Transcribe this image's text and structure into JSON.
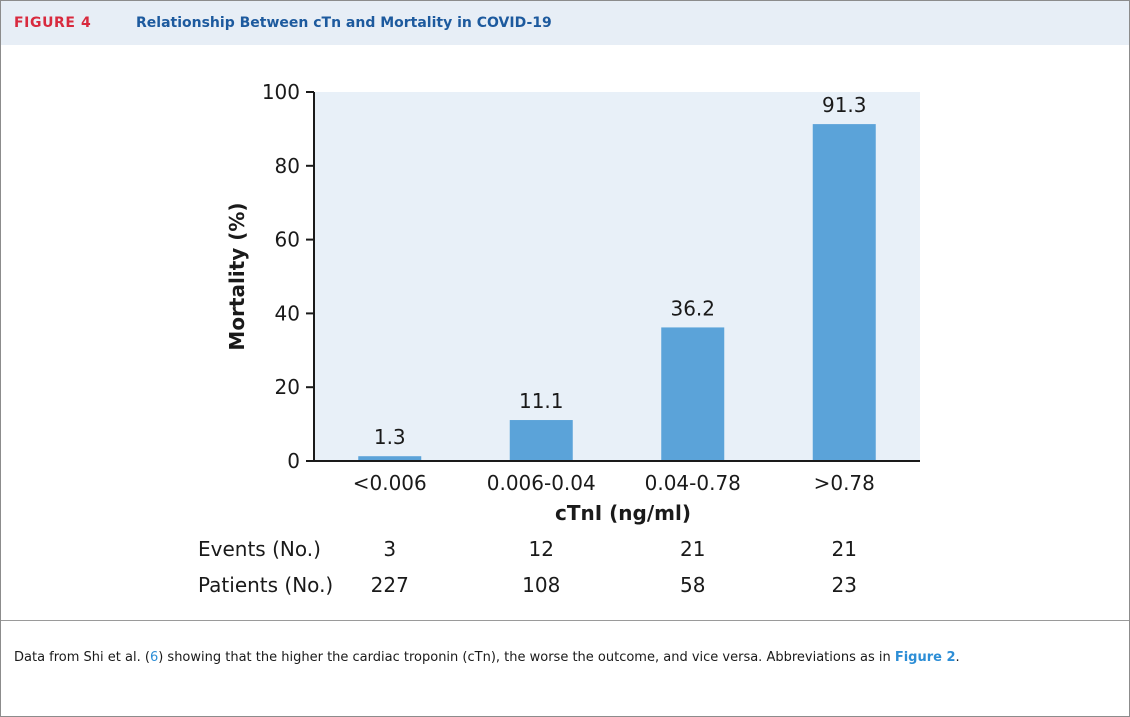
{
  "header": {
    "label": "FIGURE 4",
    "title": "Relationship Between cTn and Mortality in COVID-19"
  },
  "chart_data": {
    "type": "bar",
    "categories": [
      "<0.006",
      "0.006-0.04",
      "0.04-0.78",
      ">0.78"
    ],
    "values": [
      1.3,
      11.1,
      36.2,
      91.3
    ],
    "value_labels": [
      "1.3",
      "11.1",
      "36.2",
      "91.3"
    ],
    "ylabel": "Mortality (%)",
    "xlabel": "cTnI (ng/ml)",
    "ylim": [
      0,
      100
    ],
    "yticks": [
      0,
      20,
      40,
      60,
      80,
      100
    ],
    "bar_color": "#5ba3d9",
    "plot_bg": "#e8f0f8",
    "grid": false,
    "table": {
      "rows": [
        {
          "label": "Events (No.)",
          "values": [
            "3",
            "12",
            "21",
            "21"
          ]
        },
        {
          "label": "Patients (No.)",
          "values": [
            "227",
            "108",
            "58",
            "23"
          ]
        }
      ]
    }
  },
  "caption": {
    "pre": "Data from Shi et al. (",
    "ref": "6",
    "mid": ") showing that the higher the cardiac troponin (cTn), the worse the outcome, and vice versa. Abbreviations as in ",
    "fig_ref": "Figure 2",
    "post": "."
  }
}
